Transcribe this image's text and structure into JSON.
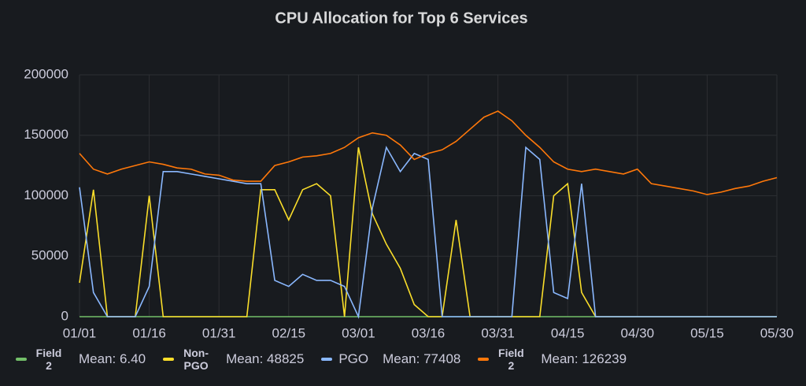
{
  "chart_data": {
    "type": "line",
    "title": "CPU Allocation for Top 6 Services",
    "categories": [
      "01/01",
      null,
      null,
      null,
      null,
      "01/16",
      null,
      null,
      null,
      null,
      "01/31",
      null,
      null,
      null,
      null,
      "02/15",
      null,
      null,
      null,
      null,
      "03/01",
      null,
      null,
      null,
      null,
      "03/16",
      null,
      null,
      null,
      null,
      "03/31",
      null,
      null,
      null,
      null,
      "04/15",
      null,
      null,
      null,
      null,
      "04/30",
      null,
      null,
      null,
      null,
      "05/15",
      null,
      null,
      null,
      null,
      "05/30"
    ],
    "ylim": [
      0,
      200000
    ],
    "yticks": [
      0,
      50000,
      100000,
      150000,
      200000
    ],
    "grid": true,
    "series": [
      {
        "name": "Field 2",
        "mean": "Mean: 6.40",
        "color": "#73bf69",
        "values": [
          0,
          0,
          0,
          0,
          0,
          0,
          0,
          0,
          0,
          0,
          0,
          0,
          0,
          0,
          0,
          0,
          0,
          0,
          0,
          0,
          0,
          0,
          0,
          0,
          0,
          0,
          0,
          0,
          0,
          0,
          0,
          0,
          0,
          0,
          0,
          0,
          0,
          0,
          0,
          0,
          0,
          0,
          0,
          0,
          0,
          0,
          0,
          0,
          0,
          0,
          0
        ]
      },
      {
        "name": "Non-PGO",
        "mean": "Mean: 48825",
        "color": "#fade2a",
        "values": [
          28000,
          105000,
          0,
          0,
          0,
          100000,
          0,
          0,
          0,
          0,
          0,
          0,
          0,
          105000,
          105000,
          80000,
          105000,
          110000,
          100000,
          0,
          140000,
          85000,
          60000,
          40000,
          10000,
          0,
          0,
          80000,
          0,
          0,
          0,
          0,
          0,
          0,
          100000,
          110000,
          20000,
          0,
          0,
          0,
          0,
          0,
          0,
          0,
          0,
          0,
          0,
          0,
          0,
          0,
          0
        ]
      },
      {
        "name": "PGO",
        "mean": "Mean: 77408",
        "color": "#8ab8ff",
        "values": [
          107000,
          20000,
          0,
          0,
          0,
          25000,
          120000,
          120000,
          118000,
          116000,
          114000,
          112000,
          110000,
          110000,
          30000,
          25000,
          35000,
          30000,
          30000,
          25000,
          0,
          90000,
          140000,
          120000,
          135000,
          130000,
          0,
          0,
          0,
          0,
          0,
          0,
          140000,
          130000,
          20000,
          15000,
          110000,
          0,
          0,
          0,
          0,
          0,
          0,
          0,
          0,
          0,
          0,
          0,
          0,
          0,
          0
        ]
      },
      {
        "name": "Field 2",
        "mean": "Mean: 126239",
        "color": "#ff780a",
        "values": [
          135000,
          122000,
          118000,
          122000,
          125000,
          128000,
          126000,
          123000,
          122000,
          118000,
          117000,
          113000,
          112000,
          112000,
          125000,
          128000,
          132000,
          133000,
          135000,
          140000,
          148000,
          152000,
          150000,
          142000,
          130000,
          135000,
          138000,
          145000,
          155000,
          165000,
          170000,
          162000,
          150000,
          140000,
          128000,
          122000,
          120000,
          122000,
          120000,
          118000,
          122000,
          110000,
          108000,
          106000,
          104000,
          101000,
          103000,
          106000,
          108000,
          112000,
          115000
        ]
      }
    ]
  }
}
